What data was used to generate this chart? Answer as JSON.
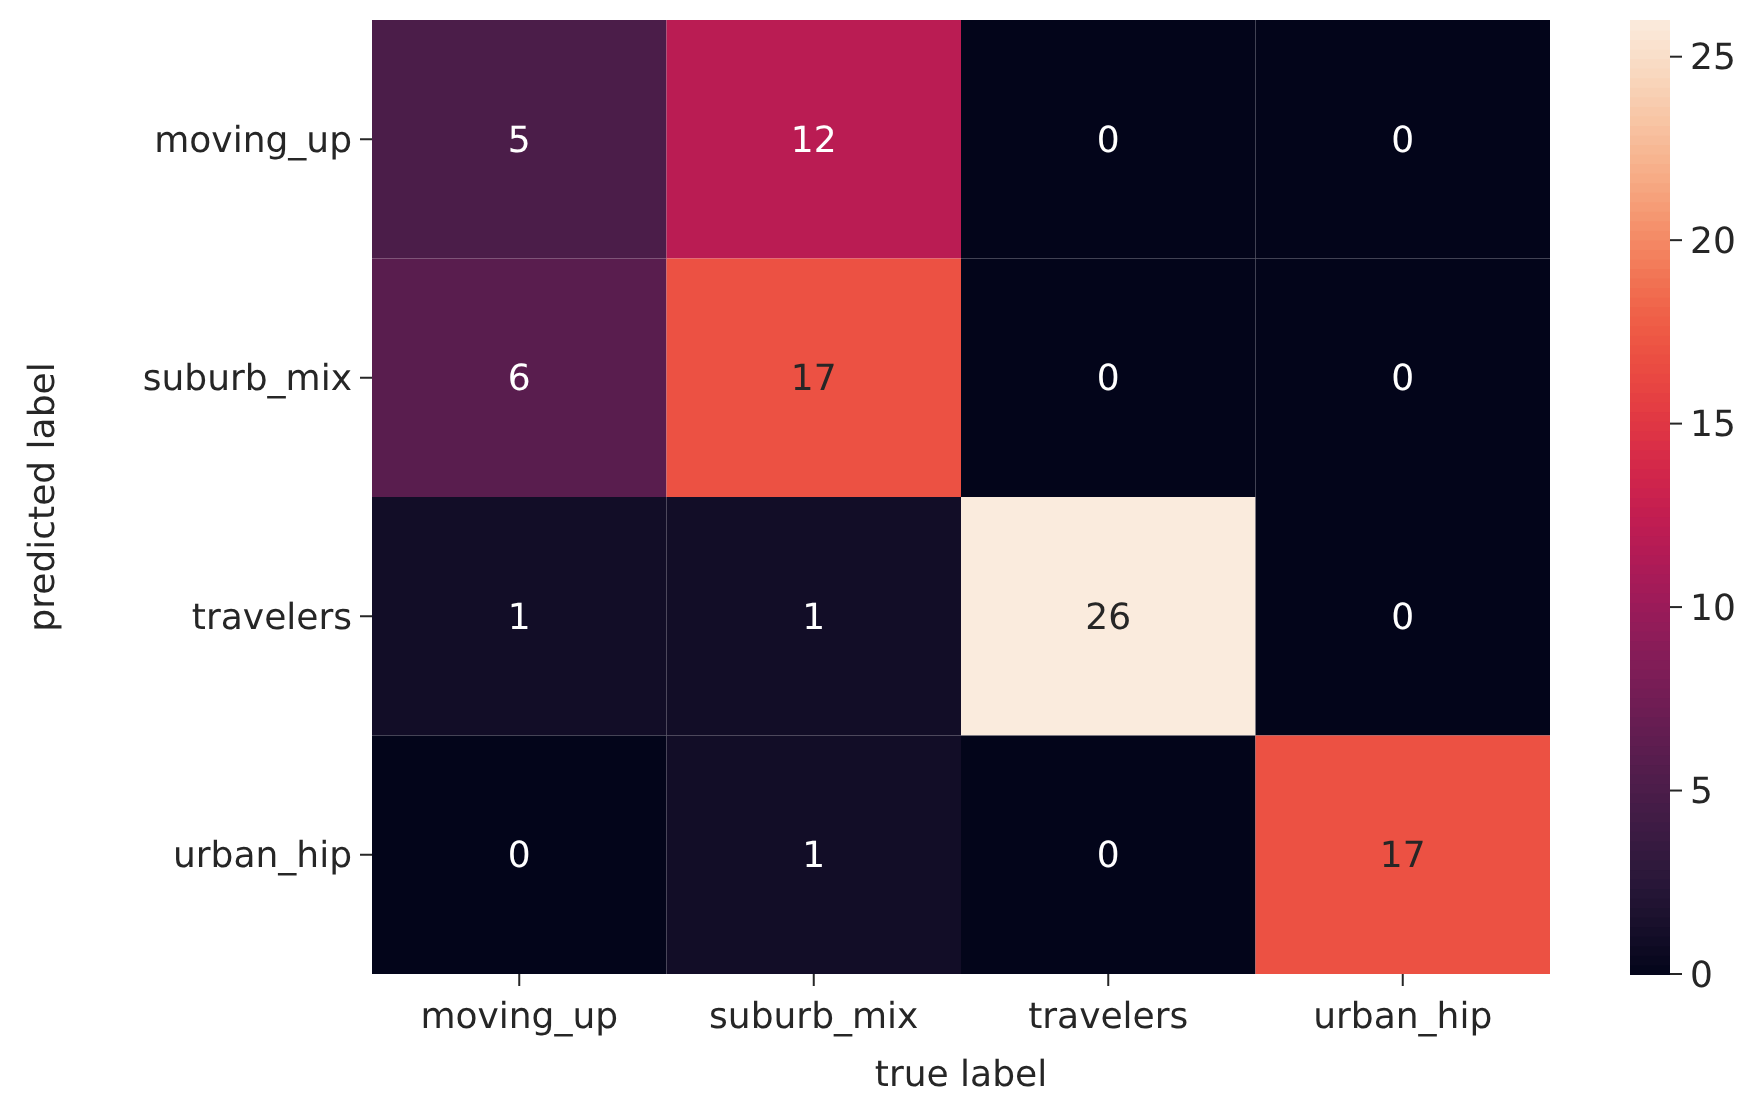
{
  "chart_data": {
    "type": "heatmap",
    "xlabel": "true label",
    "ylabel": "predicted label",
    "categories": [
      "moving_up",
      "suburb_mix",
      "travelers",
      "urban_hip"
    ],
    "y_categories": [
      "moving_up",
      "suburb_mix",
      "travelers",
      "urban_hip"
    ],
    "cells": [
      [
        5,
        12,
        0,
        0
      ],
      [
        6,
        17,
        0,
        0
      ],
      [
        1,
        1,
        26,
        0
      ],
      [
        0,
        1,
        0,
        17
      ]
    ],
    "data_labels": true,
    "clim": [
      0,
      26
    ],
    "cticks": [
      0,
      5,
      10,
      15,
      20,
      25
    ]
  }
}
